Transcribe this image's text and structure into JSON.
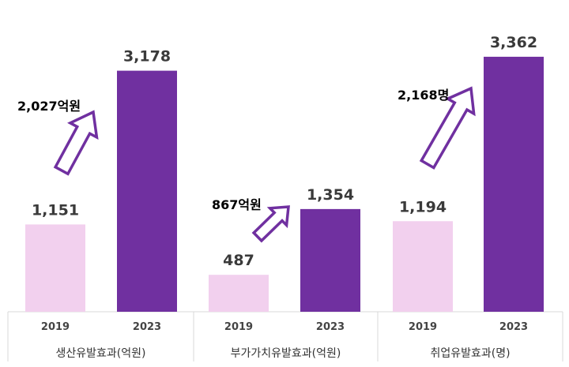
{
  "chart_data": {
    "type": "bar",
    "groups": [
      {
        "category": "생산유발효과(억원)",
        "years": [
          "2019",
          "2023"
        ],
        "values": [
          1151,
          3178
        ],
        "value_labels": [
          "1,151",
          "3,178"
        ],
        "increase_label": "2,027억원"
      },
      {
        "category": "부가가치유발효과(억원)",
        "years": [
          "2019",
          "2023"
        ],
        "values": [
          487,
          1354
        ],
        "value_labels": [
          "487",
          "1,354"
        ],
        "increase_label": "867억원"
      },
      {
        "category": "취업유발효과(명)",
        "years": [
          "2019",
          "2023"
        ],
        "values": [
          1194,
          3362
        ],
        "value_labels": [
          "1,194",
          "3,362"
        ],
        "increase_label": "2,168명"
      }
    ],
    "colors": {
      "2019": "#f2d0ee",
      "2023": "#7030a0",
      "arrow": "#7030a0"
    },
    "grid": false
  }
}
